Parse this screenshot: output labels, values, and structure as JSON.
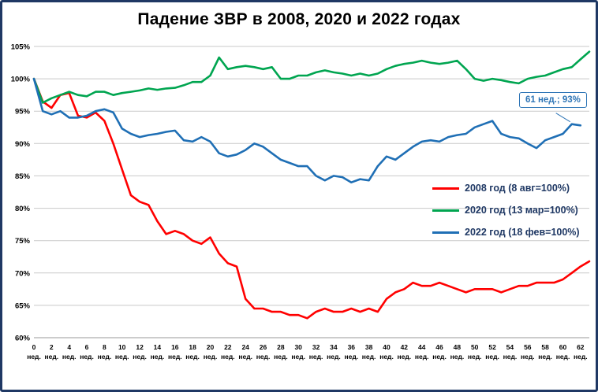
{
  "chart_data": {
    "type": "line",
    "title": "Падение ЗВР в 2008, 2020 и 2022 годах",
    "xlabel": "",
    "ylabel": "",
    "x_unit": "нед.",
    "x_tick_step": 2,
    "x_max": 63,
    "ylim": [
      60,
      105
    ],
    "y_step": 5,
    "y_tick_suffix": "%",
    "grid": true,
    "legend_position": "middle-right",
    "annotation": {
      "text": "61 нед.; 93%",
      "x": 61,
      "y": 93
    },
    "series": [
      {
        "name": "2008 год (8 авг=100%)",
        "color": "#ff0000",
        "values": [
          100,
          96.5,
          95.5,
          97.5,
          97.8,
          94.3,
          94.0,
          94.8,
          93.5,
          90.0,
          86.0,
          82.0,
          81.0,
          80.5,
          78.0,
          76.0,
          76.5,
          76.0,
          75.0,
          74.5,
          75.5,
          73.0,
          71.5,
          71.0,
          66.0,
          64.5,
          64.5,
          64.0,
          64.0,
          63.5,
          63.5,
          63.0,
          64.0,
          64.5,
          64.0,
          64.0,
          64.5,
          64.0,
          64.5,
          64.0,
          66.0,
          67.0,
          67.5,
          68.5,
          68.0,
          68.0,
          68.5,
          68.0,
          67.5,
          67.0,
          67.5,
          67.5,
          67.5,
          67.0,
          67.5,
          68.0,
          68.0,
          68.5,
          68.5,
          68.5,
          69.0,
          70.0,
          71.0,
          71.8
        ]
      },
      {
        "name": "2020 год (13 мар=100%)",
        "color": "#00a550",
        "values": [
          100,
          96.3,
          97.0,
          97.5,
          98.0,
          97.5,
          97.3,
          98.0,
          98.0,
          97.5,
          97.8,
          98.0,
          98.2,
          98.5,
          98.3,
          98.5,
          98.6,
          99.0,
          99.5,
          99.5,
          100.5,
          103.3,
          101.5,
          101.8,
          102.0,
          101.8,
          101.5,
          101.8,
          100.0,
          100.0,
          100.5,
          100.5,
          101.0,
          101.3,
          101.0,
          100.8,
          100.5,
          100.8,
          100.5,
          100.8,
          101.5,
          102.0,
          102.3,
          102.5,
          102.8,
          102.5,
          102.3,
          102.5,
          102.8,
          101.5,
          100.0,
          99.7,
          100.0,
          99.8,
          99.5,
          99.3,
          100.0,
          100.3,
          100.5,
          101.0,
          101.5,
          101.8,
          103.0,
          104.2
        ]
      },
      {
        "name": "2022 год (18 фев=100%)",
        "color": "#1f6fb5",
        "values": [
          100,
          95.0,
          94.5,
          95.0,
          94.0,
          94.0,
          94.3,
          95.0,
          95.3,
          94.8,
          92.3,
          91.5,
          91.0,
          91.3,
          91.5,
          91.8,
          92.0,
          90.5,
          90.3,
          91.0,
          90.3,
          88.5,
          88.0,
          88.3,
          89.0,
          90.0,
          89.5,
          88.5,
          87.5,
          87.0,
          86.5,
          86.5,
          85.0,
          84.3,
          85.0,
          84.8,
          84.0,
          84.5,
          84.3,
          86.5,
          88.0,
          87.5,
          88.5,
          89.5,
          90.3,
          90.5,
          90.3,
          91.0,
          91.3,
          91.5,
          92.5,
          93.0,
          93.5,
          91.5,
          91.0,
          90.8,
          90.0,
          89.3,
          90.5,
          91.0,
          91.5,
          93.0,
          92.8
        ]
      }
    ]
  },
  "colors": {
    "frame_border": "#1f3864",
    "grid": "#c9c9c9",
    "annotation_accent": "#2e75b6",
    "legend_text": "#1f3864"
  }
}
